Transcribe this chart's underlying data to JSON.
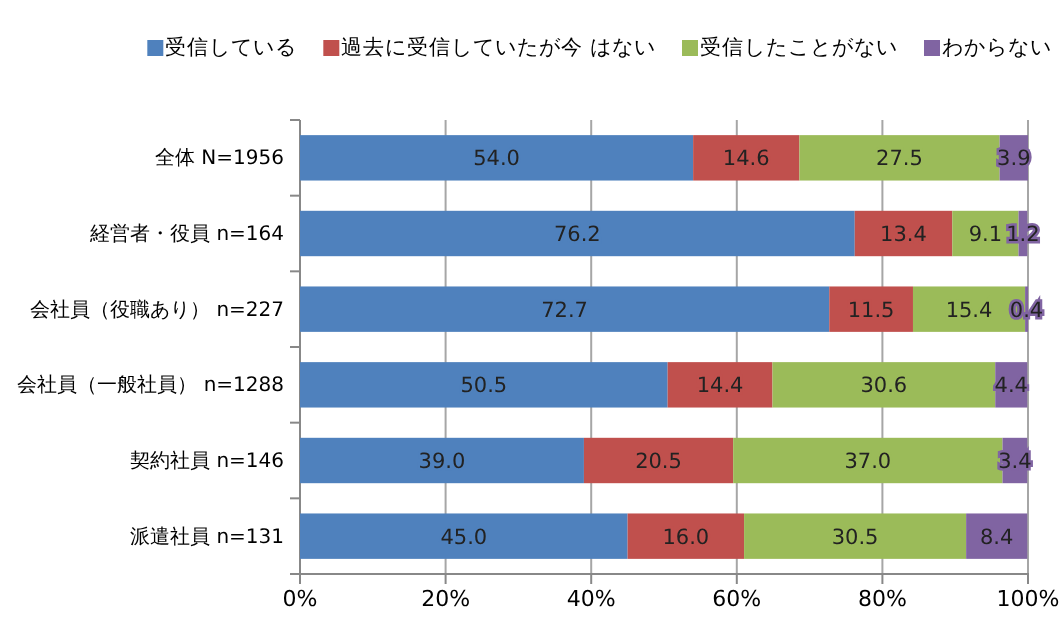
{
  "chart_data": {
    "type": "bar",
    "orientation": "horizontal",
    "stacked": true,
    "categories": [
      "全体 N=1956",
      "経営者・役員 n=164",
      "会社員（役職あり） n=227",
      "会社員（一般社員） n=1288",
      "契約社員 n=146",
      "派遣社員 n=131"
    ],
    "series": [
      {
        "name": "受信している",
        "color": "#4f81bd",
        "values": [
          54.0,
          76.2,
          72.7,
          50.5,
          39.0,
          45.0
        ],
        "value_labels": [
          "54.0",
          "76.2",
          "72.7",
          "50.5",
          "39.0",
          "45.0"
        ]
      },
      {
        "name": "過去に受信していたが今 はない",
        "color": "#c0504d",
        "values": [
          14.6,
          13.4,
          11.5,
          14.4,
          20.5,
          16.0
        ],
        "value_labels": [
          "14.6",
          "13.4",
          "11.5",
          "14.4",
          "20.5",
          "16.0"
        ]
      },
      {
        "name": "受信したことがない",
        "color": "#9bbb59",
        "values": [
          27.5,
          9.1,
          15.4,
          30.6,
          37.0,
          30.5
        ],
        "value_labels": [
          "27.5",
          "9.1",
          "15.4",
          "30.6",
          "37.0",
          "30.5"
        ]
      },
      {
        "name": "わからない",
        "color": "#8064a2",
        "values": [
          3.9,
          1.2,
          0.4,
          4.4,
          3.4,
          8.4
        ],
        "value_labels": [
          "3.9",
          "1.2",
          "0.4",
          "4.4",
          "3.4",
          "8.4"
        ]
      }
    ],
    "xlim": [
      0,
      100
    ],
    "xticks": [
      {
        "value": 0,
        "label": "0%"
      },
      {
        "value": 20,
        "label": "20%"
      },
      {
        "value": 40,
        "label": "40%"
      },
      {
        "value": 60,
        "label": "60%"
      },
      {
        "value": 80,
        "label": "80%"
      },
      {
        "value": 100,
        "label": "100%"
      }
    ],
    "grid": "x",
    "legend": "top"
  }
}
